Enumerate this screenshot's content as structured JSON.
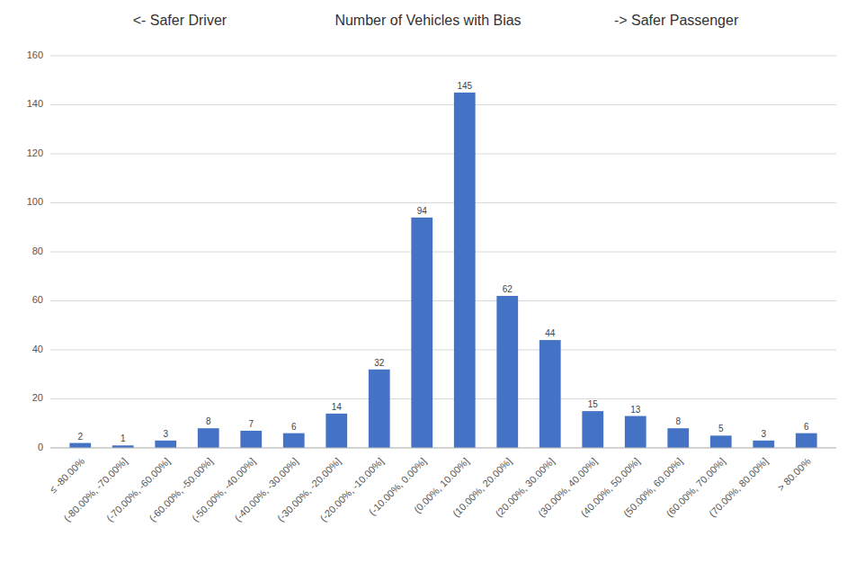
{
  "chart_data": {
    "type": "bar",
    "title": "Number of Vehicles with Bias",
    "annotations": [
      "<- Safer Driver",
      "-> Safer Passenger"
    ],
    "categories": [
      "≤ -80.00%",
      "(-80.00%, -70.00%]",
      "(-70.00%, -60.00%]",
      "(-60.00%, -50.00%]",
      "(-50.00%, -40.00%]",
      "(-40.00%, -30.00%]",
      "(-30.00%, -20.00%]",
      "(-20.00%, -10.00%]",
      "(-10.00%, 0.00%]",
      "(0.00%, 10.00%]",
      "(10.00%, 20.00%]",
      "(20.00%, 30.00%]",
      "(30.00%, 40.00%]",
      "(40.00%, 50.00%]",
      "(50.00%, 60.00%]",
      "(60.00%, 70.00%]",
      "(70.00%, 80.00%]",
      "> 80.00%"
    ],
    "values": [
      2,
      1,
      3,
      8,
      7,
      6,
      14,
      32,
      94,
      145,
      62,
      44,
      15,
      13,
      8,
      5,
      3,
      6
    ],
    "color": "#4472C4",
    "ylim": [
      0,
      160
    ],
    "yticks": [
      0,
      20,
      40,
      60,
      80,
      100,
      120,
      140,
      160
    ],
    "grid": true,
    "data_labels": true
  }
}
